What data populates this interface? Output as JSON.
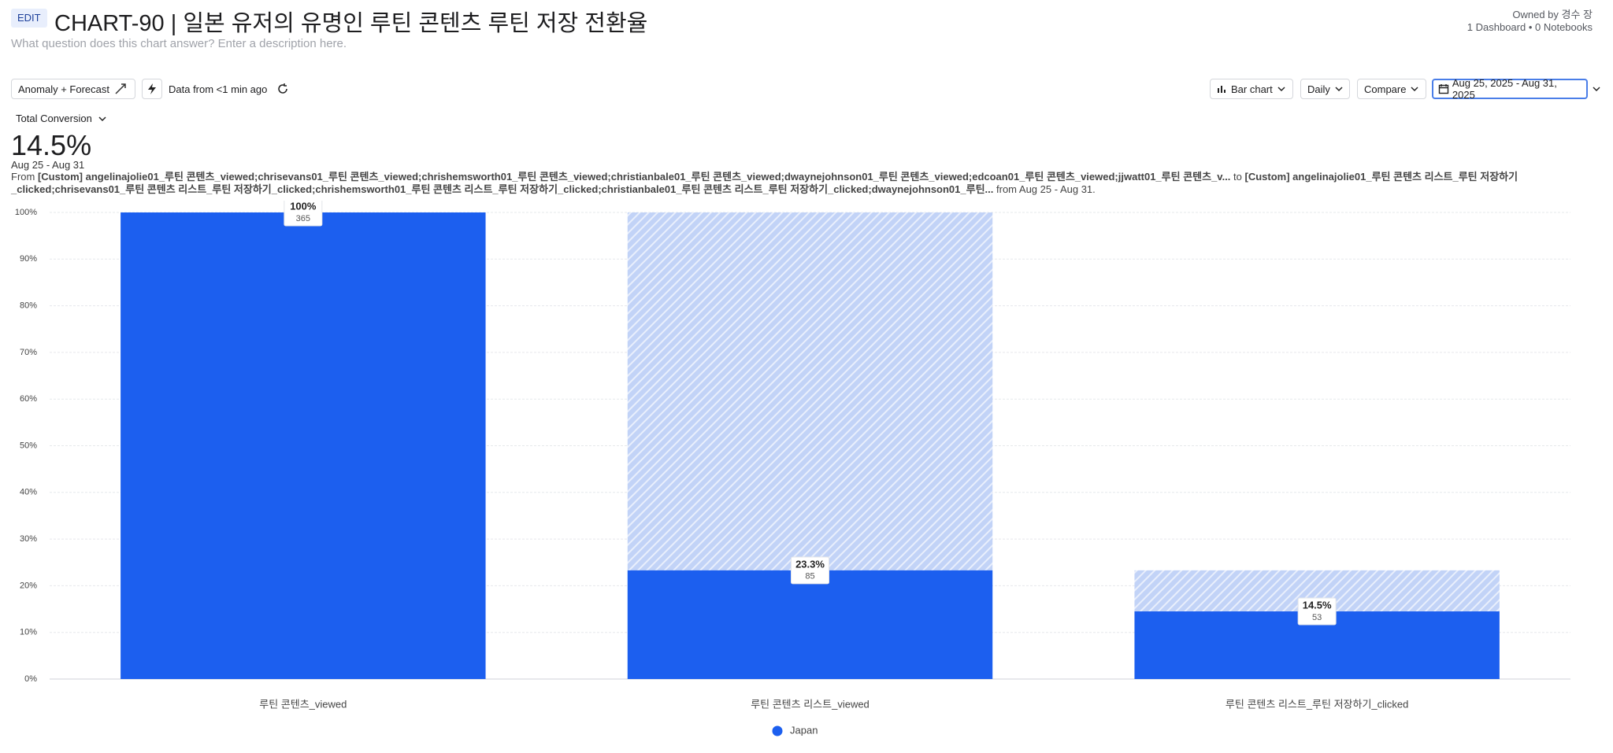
{
  "header": {
    "badge": "EDIT",
    "title": "CHART-90 | 일본 유저의 유명인 루틴 콘텐츠 루틴 저장 전환율",
    "description": "What question does this chart answer? Enter a description here.",
    "owner": "Owned by 경수 장",
    "usage": "1 Dashboard • 0 Notebooks"
  },
  "toolbar": {
    "anomaly": "Anomaly + Forecast",
    "freshness": "Data from <1 min ago",
    "chart_type": "Bar chart",
    "interval": "Daily",
    "compare": "Compare",
    "date_range": "Aug 25, 2025 - Aug 31, 2025"
  },
  "summary": {
    "metric": "Total Conversion",
    "value": "14.5%",
    "period": "Aug 25 - Aug 31",
    "from_word": "From",
    "from_events": "[Custom] angelinajolie01_루틴 콘텐츠_viewed;chrisevans01_루틴 콘텐츠_viewed;chrishemsworth01_루틴 콘텐츠_viewed;christianbale01_루틴 콘텐츠_viewed;dwaynejohnson01_루틴 콘텐츠_viewed;edcoan01_루틴 콘텐츠_viewed;jjwatt01_루틴 콘텐츠_v...",
    "to_word": "to",
    "to_events": "[Custom] angelinajolie01_루틴 콘텐츠 리스트_루틴 저장하기_clicked;chrisevans01_루틴 콘텐츠 리스트_루틴 저장하기_clicked;chrishemsworth01_루틴 콘텐츠 리스트_루틴 저장하기_clicked;christianbale01_루틴 콘텐츠 리스트_루틴 저장하기_clicked;dwaynejohnson01_루틴...",
    "range_note": "from Aug 25 - Aug 31."
  },
  "chart_data": {
    "type": "funnel",
    "categories": [
      "루틴 콘텐츠_viewed",
      "루틴 콘텐츠 리스트_viewed",
      "루틴 콘텐츠 리스트_루틴 저장하기_clicked"
    ],
    "series": [
      {
        "name": "Japan",
        "color": "#1c5fef",
        "values": [
          100,
          23.3,
          14.5
        ],
        "value_labels": [
          "100%",
          "23.3%",
          "14.5%"
        ],
        "counts": [
          365,
          85,
          53
        ]
      }
    ],
    "ylim": [
      0,
      100
    ],
    "yticks": [
      {
        "value": 0,
        "label": "0%"
      },
      {
        "value": 10,
        "label": "10%"
      },
      {
        "value": 20,
        "label": "20%"
      },
      {
        "value": 30,
        "label": "30%"
      },
      {
        "value": 40,
        "label": "40%"
      },
      {
        "value": 50,
        "label": "50%"
      },
      {
        "value": 60,
        "label": "60%"
      },
      {
        "value": 70,
        "label": "70%"
      },
      {
        "value": 80,
        "label": "80%"
      },
      {
        "value": 90,
        "label": "90%"
      },
      {
        "value": 100,
        "label": "100%"
      }
    ],
    "grid": true,
    "legend": "bottom"
  }
}
